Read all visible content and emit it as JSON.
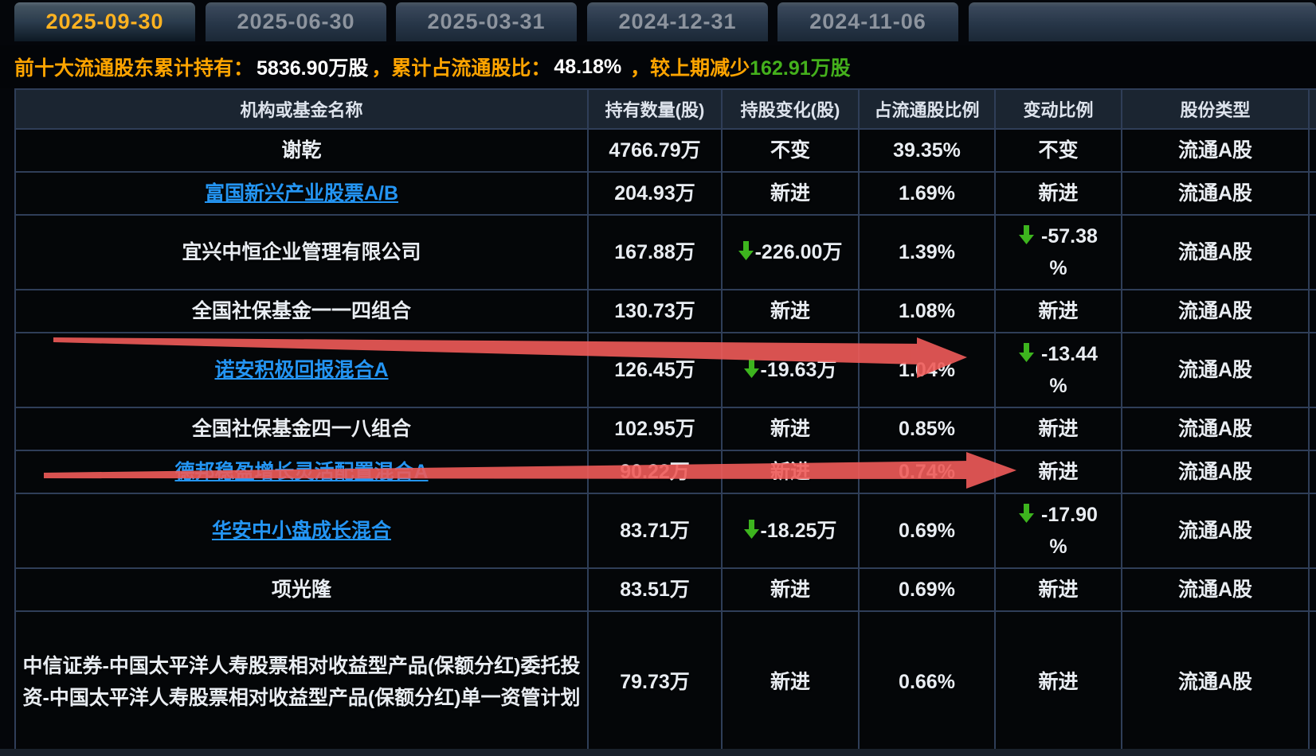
{
  "tabs": [
    {
      "label": "2025-09-30",
      "active": true
    },
    {
      "label": "2025-06-30",
      "active": false
    },
    {
      "label": "2025-03-31",
      "active": false
    },
    {
      "label": "2024-12-31",
      "active": false
    },
    {
      "label": "2024-11-06",
      "active": false
    },
    {
      "label": "",
      "active": false
    }
  ],
  "summary": {
    "label1": "前十大流通股东累计持有：",
    "value1": "5836.90万股",
    "label2": "，累计占流通股比：",
    "value2": "48.18%",
    "label3": " ，较上期减少",
    "value3": "162.91万股"
  },
  "table": {
    "headers": [
      "机构或基金名称",
      "持有数量(股)",
      "持股变化(股)",
      "占流通股比例",
      "变动比例",
      "股份类型"
    ],
    "rows": [
      {
        "name": "谢乾",
        "link": false,
        "qty": "4766.79万",
        "change": "不变",
        "change_dir": "flat",
        "ratio": "39.35%",
        "pct": "不变",
        "pct_suffix": "",
        "pct_dir": "flat",
        "share_type": "流通A股"
      },
      {
        "name": "富国新兴产业股票A/B",
        "link": true,
        "qty": "204.93万",
        "change": "新进",
        "change_dir": "new",
        "ratio": "1.69%",
        "pct": "新进",
        "pct_suffix": "",
        "pct_dir": "new",
        "share_type": "流通A股"
      },
      {
        "name": "宜兴中恒企业管理有限公司",
        "link": false,
        "qty": "167.88万",
        "change": "-226.00万",
        "change_dir": "down",
        "ratio": "1.39%",
        "pct": "-57.38",
        "pct_suffix": "%",
        "pct_dir": "down",
        "share_type": "流通A股"
      },
      {
        "name": "全国社保基金一一四组合",
        "link": false,
        "qty": "130.73万",
        "change": "新进",
        "change_dir": "new",
        "ratio": "1.08%",
        "pct": "新进",
        "pct_suffix": "",
        "pct_dir": "new",
        "share_type": "流通A股"
      },
      {
        "name": "诺安积极回报混合A",
        "link": true,
        "qty": "126.45万",
        "change": "-19.63万",
        "change_dir": "down",
        "ratio": "1.04%",
        "pct": "-13.44",
        "pct_suffix": "%",
        "pct_dir": "down",
        "share_type": "流通A股"
      },
      {
        "name": "全国社保基金四一八组合",
        "link": false,
        "qty": "102.95万",
        "change": "新进",
        "change_dir": "new",
        "ratio": "0.85%",
        "pct": "新进",
        "pct_suffix": "",
        "pct_dir": "new",
        "share_type": "流通A股"
      },
      {
        "name": "德邦稳盈增长灵活配置混合A",
        "link": true,
        "qty": "90.22万",
        "change": "新进",
        "change_dir": "new",
        "ratio": "0.74%",
        "pct": "新进",
        "pct_suffix": "",
        "pct_dir": "new",
        "share_type": "流通A股"
      },
      {
        "name": "华安中小盘成长混合",
        "link": true,
        "qty": "83.71万",
        "change": "-18.25万",
        "change_dir": "down",
        "ratio": "0.69%",
        "pct": "-17.90",
        "pct_suffix": "%",
        "pct_dir": "down",
        "share_type": "流通A股"
      },
      {
        "name": "项光隆",
        "link": false,
        "qty": "83.51万",
        "change": "新进",
        "change_dir": "new",
        "ratio": "0.69%",
        "pct": "新进",
        "pct_suffix": "",
        "pct_dir": "new",
        "share_type": "流通A股"
      },
      {
        "name": "中信证券-中国太平洋人寿股票相对收益型产品(保额分红)委托投资-中国太平洋人寿股票相对收益型产品(保额分红)单一资管计划",
        "link": false,
        "qty": "79.73万",
        "change": "新进",
        "change_dir": "new",
        "ratio": "0.66%",
        "pct": "新进",
        "pct_suffix": "",
        "pct_dir": "new",
        "share_type": "流通A股"
      }
    ]
  },
  "colors": {
    "accent_orange": "#ffaa00",
    "tab_active_text": "#ffb321",
    "rise_red": "#e60505",
    "fall_green": "#3db41e",
    "link_blue": "#2495f3",
    "annotation_red": "#ef5b59",
    "border_blue": "#2f3e58",
    "header_bg": "#1b2531"
  }
}
